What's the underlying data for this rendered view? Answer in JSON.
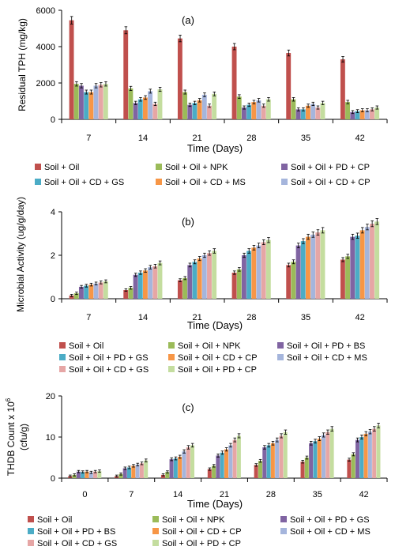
{
  "colors": {
    "red": "#c0504d",
    "green": "#9bbb59",
    "purple": "#8064a2",
    "teal": "#4bacc6",
    "orange": "#f79646",
    "lightblue": "#a5b5dc",
    "pink": "#e6a6a5",
    "lightgreen": "#c4dd9f"
  },
  "chart_data": [
    {
      "type": "bar",
      "panel_label": "(a)",
      "xlabel": "Time (Days)",
      "ylabel": "Residual TPH (mg/kg)",
      "ylim": [
        0,
        6000
      ],
      "yticks": [
        "0",
        "2000",
        "4000",
        "6000"
      ],
      "categories": [
        "7",
        "14",
        "21",
        "28",
        "35",
        "42"
      ],
      "error_bars": true,
      "legend": "bottom",
      "series": [
        {
          "name": "Soil + Oil",
          "color": "#c0504d",
          "values": [
            5450,
            4900,
            4450,
            4000,
            3650,
            3300
          ]
        },
        {
          "name": "Soil + Oil + NPK",
          "color": "#9bbb59",
          "values": [
            1950,
            1700,
            1500,
            1250,
            1100,
            950
          ]
        },
        {
          "name": "Soil + Oil + PD + CP",
          "color": "#8064a2",
          "values": [
            1850,
            900,
            800,
            650,
            550,
            400
          ]
        },
        {
          "name": "Soil + Oil + CD + GS",
          "color": "#4bacc6",
          "values": [
            1500,
            1100,
            900,
            800,
            550,
            450
          ]
        },
        {
          "name": "Soil + Oil + CD + MS",
          "color": "#f79646",
          "values": [
            1500,
            1200,
            1050,
            950,
            750,
            500
          ]
        },
        {
          "name": "Soil + Oil + CD + CP",
          "color": "#a5b5dc",
          "values": [
            1850,
            1550,
            1350,
            1050,
            850,
            500
          ]
        },
        {
          "color": "#e6a6a5",
          "values": [
            1900,
            850,
            750,
            750,
            650,
            550
          ]
        },
        {
          "color": "#c4dd9f",
          "values": [
            1950,
            1650,
            1400,
            1100,
            900,
            650
          ]
        }
      ]
    },
    {
      "type": "bar",
      "panel_label": "(b)",
      "xlabel": "Time (Days)",
      "ylabel": "Microbial Activity (ug/g/day)",
      "ylim": [
        0,
        4
      ],
      "yticks": [
        "0",
        "2",
        "4"
      ],
      "categories": [
        "7",
        "14",
        "21",
        "28",
        "35",
        "42"
      ],
      "error_bars": true,
      "legend": "bottom",
      "series": [
        {
          "name": "Soil + Oil",
          "color": "#c0504d",
          "values": [
            0.15,
            0.4,
            0.85,
            1.2,
            1.55,
            1.8
          ]
        },
        {
          "name": "Soil + Oil + NPK",
          "color": "#9bbb59",
          "values": [
            0.25,
            0.5,
            0.95,
            1.35,
            1.7,
            1.95
          ]
        },
        {
          "name": "Soil + Oil + PD + BS",
          "color": "#8064a2",
          "values": [
            0.55,
            1.1,
            1.55,
            2.0,
            2.45,
            2.85
          ]
        },
        {
          "name": "Soil + Oil + PD + GS",
          "color": "#4bacc6",
          "values": [
            0.6,
            1.2,
            1.7,
            2.2,
            2.65,
            2.9
          ]
        },
        {
          "name": "Soil + Oil + CD + CP",
          "color": "#f79646",
          "values": [
            0.65,
            1.3,
            1.85,
            2.35,
            2.85,
            3.15
          ]
        },
        {
          "name": "Soil + Oil + CD + MS",
          "color": "#a5b5dc",
          "values": [
            0.7,
            1.45,
            2.0,
            2.45,
            2.95,
            3.3
          ]
        },
        {
          "name": "Soil + Oil + CD + GS",
          "color": "#e6a6a5",
          "values": [
            0.75,
            1.5,
            2.1,
            2.6,
            3.05,
            3.45
          ]
        },
        {
          "name": "Soil + Oil + PD + CP",
          "color": "#c4dd9f",
          "values": [
            0.8,
            1.65,
            2.2,
            2.7,
            3.15,
            3.55
          ]
        }
      ]
    },
    {
      "type": "bar",
      "panel_label": "(c)",
      "xlabel": "Time (Days)",
      "ylabel_line1": "THDB Count x 10",
      "ylabel_sup": "6",
      "ylabel_line2": "(cfu/g)",
      "ylim": [
        0,
        20
      ],
      "yticks": [
        "0",
        "10",
        "20"
      ],
      "categories": [
        "0",
        "7",
        "14",
        "21",
        "28",
        "35",
        "42"
      ],
      "error_bars": true,
      "legend": "bottom",
      "series": [
        {
          "name": "Soil + Oil",
          "color": "#c0504d",
          "values": [
            0.5,
            0.5,
            0.8,
            2.2,
            3.2,
            4.0,
            4.5
          ]
        },
        {
          "name": "Soil + Oil + NPK",
          "color": "#9bbb59",
          "values": [
            0.8,
            1.0,
            1.5,
            3.0,
            4.2,
            5.0,
            5.8
          ]
        },
        {
          "name": "Soil + Oil + PD + GS",
          "color": "#8064a2",
          "values": [
            1.6,
            2.4,
            4.6,
            5.5,
            7.5,
            8.5,
            9.3
          ]
        },
        {
          "name": "Soil + Oil + PD + BS",
          "color": "#4bacc6",
          "values": [
            1.5,
            2.6,
            4.8,
            6.2,
            8.0,
            9.0,
            10.0
          ]
        },
        {
          "name": "Soil + Oil + CD + CP",
          "color": "#f79646",
          "values": [
            1.6,
            3.0,
            5.2,
            7.0,
            8.5,
            9.6,
            10.8
          ]
        },
        {
          "name": "Soil + Oil + CD + MS",
          "color": "#a5b5dc",
          "values": [
            1.4,
            3.3,
            6.5,
            8.0,
            9.3,
            10.5,
            11.3
          ]
        },
        {
          "name": "Soil + Oil + CD + GS",
          "color": "#e6a6a5",
          "values": [
            1.6,
            3.6,
            7.5,
            9.3,
            10.3,
            11.2,
            12.0
          ]
        },
        {
          "name": "Soil + Oil + PD + CP",
          "color": "#c4dd9f",
          "values": [
            1.7,
            4.3,
            8.0,
            10.3,
            11.2,
            12.0,
            12.8
          ]
        }
      ]
    }
  ]
}
